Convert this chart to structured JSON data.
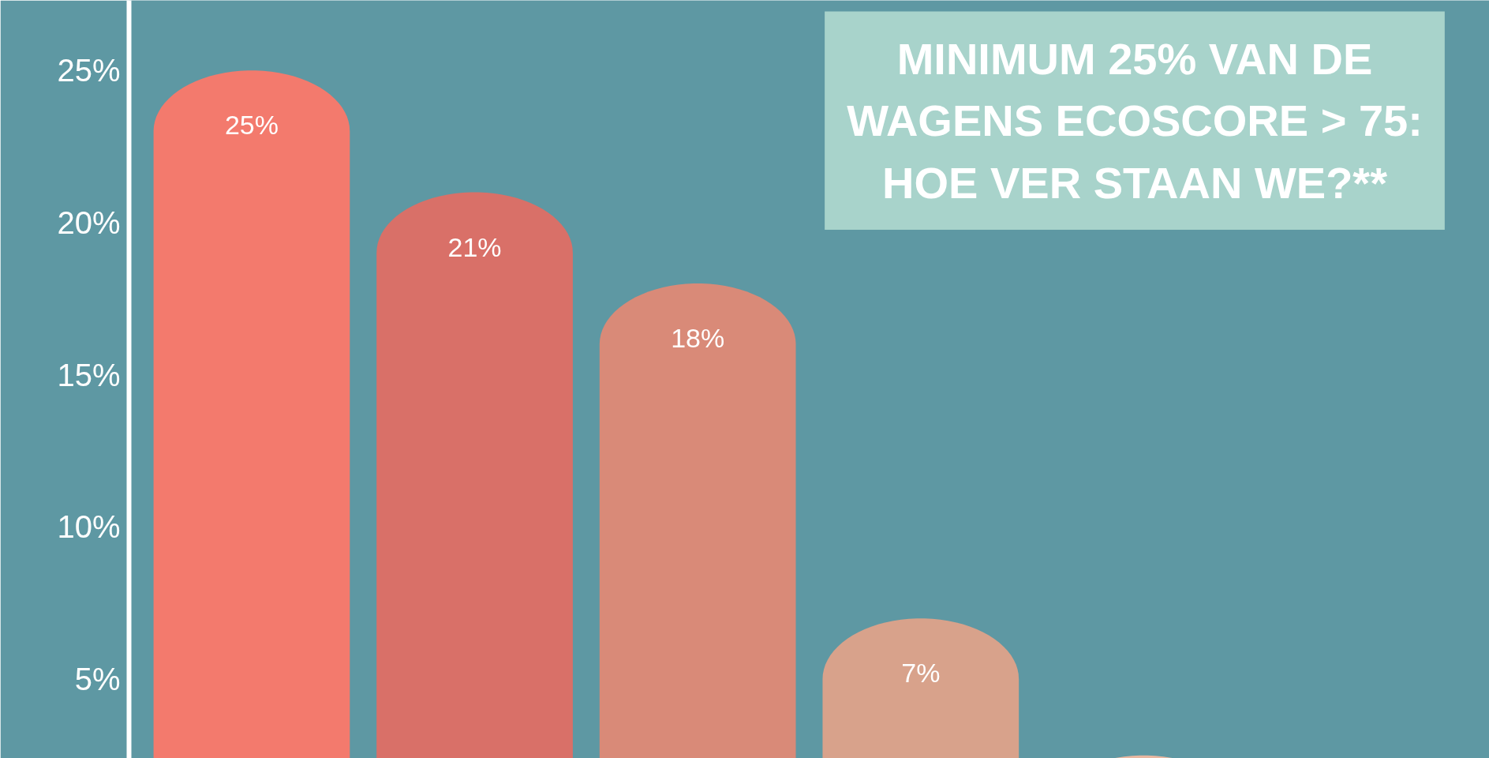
{
  "chart_data": {
    "type": "bar",
    "title": "MINIMUM 25% VAN DE WAGENS ECOSCORE > 75: HOE VER STAAN WE?**",
    "categories": [
      null,
      null,
      null,
      null,
      null
    ],
    "values": [
      25,
      21,
      18,
      7,
      2.5
    ],
    "colors": [
      "#f37a6d",
      "#d97068",
      "#d98a78",
      "#d8a28b",
      "#e9b7a0"
    ],
    "value_labels": [
      "25%",
      "21%",
      "18%",
      "7%",
      null
    ],
    "ylim": [
      2.4,
      27.3
    ],
    "yticks": [
      {
        "value": 5,
        "label": "5%"
      },
      {
        "value": 10,
        "label": "10%"
      },
      {
        "value": 15,
        "label": "15%"
      },
      {
        "value": 20,
        "label": "20%"
      },
      {
        "value": 25,
        "label": "25%"
      }
    ],
    "grid": false
  }
}
